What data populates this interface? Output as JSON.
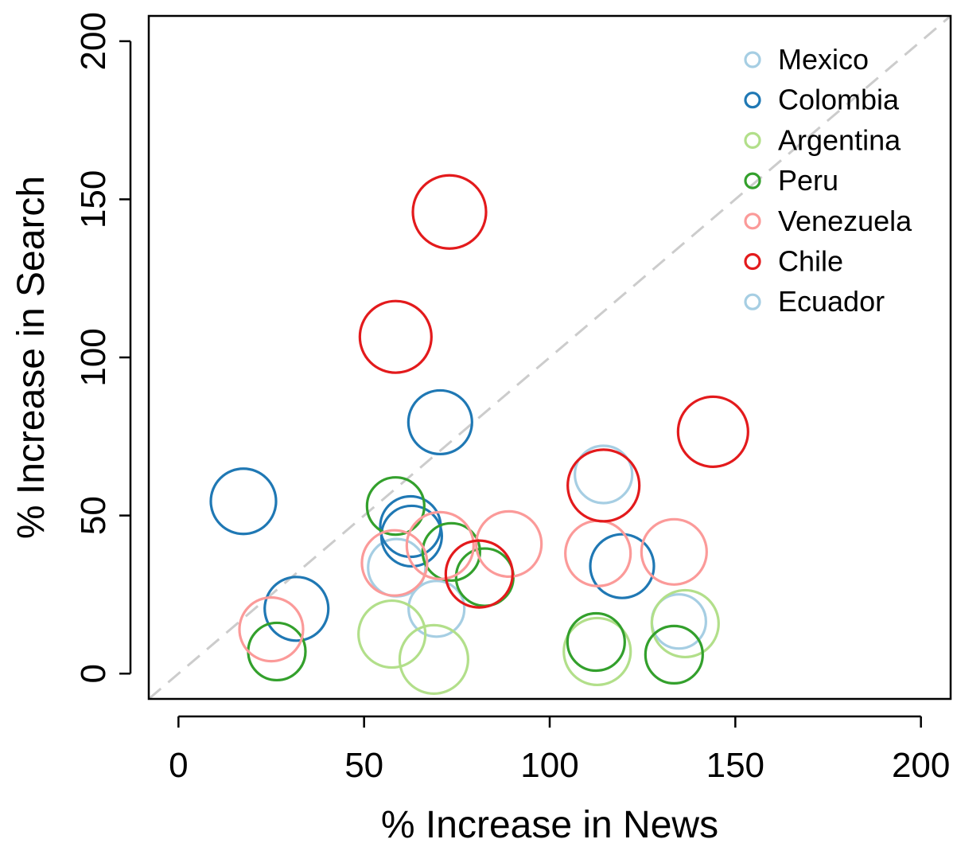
{
  "chart_data": {
    "type": "scatter",
    "xlabel": "% Increase in News",
    "ylabel": "% Increase in Search",
    "xlim": [
      -8,
      208
    ],
    "ylim": [
      -8,
      208
    ],
    "xticks": [
      0,
      50,
      100,
      150,
      200
    ],
    "yticks": [
      0,
      50,
      100,
      150,
      200
    ],
    "reference_line": "y = x, dashed, light gray",
    "marker": "open circle, size proportional to value",
    "legend_position": "top-right",
    "series": [
      {
        "name": "Mexico",
        "color": "#a6cee3",
        "points": [
          {
            "x": 58.8,
            "y": 33.5,
            "r": 36
          },
          {
            "x": 69.5,
            "y": 20.5,
            "r": 35
          },
          {
            "x": 114.5,
            "y": 63.0,
            "r": 36
          },
          {
            "x": 134.8,
            "y": 16.5,
            "r": 34
          }
        ]
      },
      {
        "name": "Colombia",
        "color": "#1f78b4",
        "points": [
          {
            "x": 17.5,
            "y": 54.5,
            "r": 41
          },
          {
            "x": 31.8,
            "y": 20.5,
            "r": 40
          },
          {
            "x": 62.5,
            "y": 46.5,
            "r": 38
          },
          {
            "x": 62.8,
            "y": 43.5,
            "r": 38
          },
          {
            "x": 70.5,
            "y": 79.5,
            "r": 40
          },
          {
            "x": 119.5,
            "y": 34.0,
            "r": 40
          }
        ]
      },
      {
        "name": "Argentina",
        "color": "#b2df8a",
        "points": [
          {
            "x": 57.5,
            "y": 12.5,
            "r": 42
          },
          {
            "x": 68.8,
            "y": 4.5,
            "r": 43
          },
          {
            "x": 112.8,
            "y": 7.0,
            "r": 42
          },
          {
            "x": 136.5,
            "y": 15.8,
            "r": 42
          }
        ]
      },
      {
        "name": "Peru",
        "color": "#33a02c",
        "points": [
          {
            "x": 26.5,
            "y": 7.0,
            "r": 36
          },
          {
            "x": 58.5,
            "y": 53.0,
            "r": 36
          },
          {
            "x": 73.5,
            "y": 38.5,
            "r": 36
          },
          {
            "x": 82.5,
            "y": 30.5,
            "r": 36
          },
          {
            "x": 112.5,
            "y": 10.0,
            "r": 36
          },
          {
            "x": 133.5,
            "y": 6.0,
            "r": 36
          }
        ]
      },
      {
        "name": "Venezuela",
        "color": "#fb9a99",
        "points": [
          {
            "x": 25.0,
            "y": 14.0,
            "r": 40
          },
          {
            "x": 58.2,
            "y": 35.0,
            "r": 41
          },
          {
            "x": 70.5,
            "y": 40.5,
            "r": 42
          },
          {
            "x": 89.0,
            "y": 41.0,
            "r": 41
          },
          {
            "x": 113.0,
            "y": 38.0,
            "r": 41
          },
          {
            "x": 133.5,
            "y": 38.5,
            "r": 41
          }
        ]
      },
      {
        "name": "Chile",
        "color": "#e31a1c",
        "points": [
          {
            "x": 73.0,
            "y": 146.0,
            "r": 46
          },
          {
            "x": 58.5,
            "y": 106.5,
            "r": 45
          },
          {
            "x": 81.0,
            "y": 31.5,
            "r": 42
          },
          {
            "x": 114.5,
            "y": 59.5,
            "r": 45
          },
          {
            "x": 144.0,
            "y": 76.5,
            "r": 44
          }
        ]
      },
      {
        "name": "Ecuador",
        "color": "#a6cee3",
        "points": []
      }
    ]
  }
}
